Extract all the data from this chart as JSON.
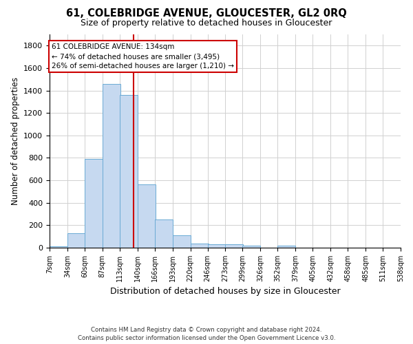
{
  "title": "61, COLEBRIDGE AVENUE, GLOUCESTER, GL2 0RQ",
  "subtitle": "Size of property relative to detached houses in Gloucester",
  "xlabel": "Distribution of detached houses by size in Gloucester",
  "ylabel": "Number of detached properties",
  "bar_color": "#c6d9f0",
  "bar_edge_color": "#6aaad4",
  "grid_color": "#d0d0d0",
  "background_color": "#ffffff",
  "bins": [
    7,
    34,
    60,
    87,
    113,
    140,
    166,
    193,
    220,
    246,
    273,
    299,
    326,
    352,
    379,
    405,
    432,
    458,
    485,
    511,
    538
  ],
  "counts": [
    15,
    130,
    790,
    1460,
    1360,
    565,
    250,
    110,
    35,
    30,
    28,
    18,
    0,
    20,
    0,
    0,
    0,
    0,
    0,
    0
  ],
  "vline_x": 134,
  "vline_color": "#cc0000",
  "annotation_text": "61 COLEBRIDGE AVENUE: 134sqm\n← 74% of detached houses are smaller (3,495)\n26% of semi-detached houses are larger (1,210) →",
  "annotation_box_color": "#ffffff",
  "annotation_box_edge_color": "#cc0000",
  "ylim": [
    0,
    1900
  ],
  "yticks": [
    0,
    200,
    400,
    600,
    800,
    1000,
    1200,
    1400,
    1600,
    1800
  ],
  "footer_line1": "Contains HM Land Registry data © Crown copyright and database right 2024.",
  "footer_line2": "Contains public sector information licensed under the Open Government Licence v3.0."
}
